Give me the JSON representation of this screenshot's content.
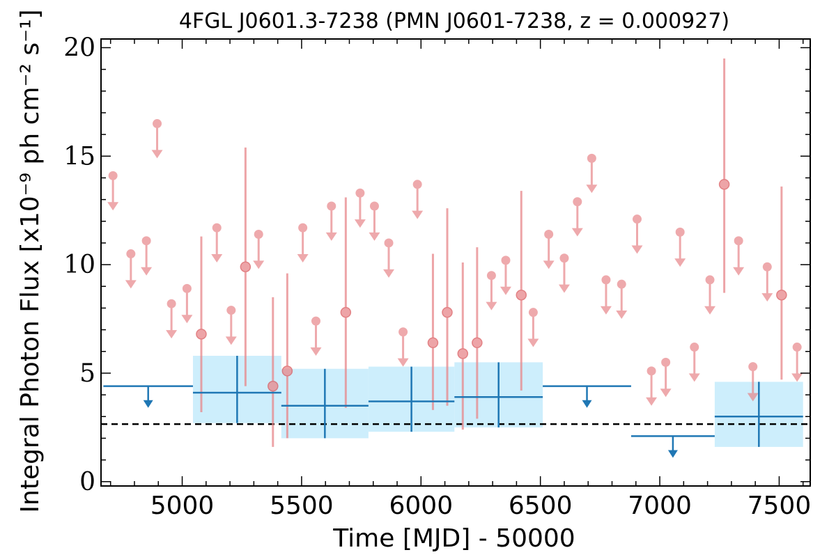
{
  "chart_data": {
    "type": "scatter",
    "title": "4FGL J0601.3-7238 (PMN J0601-7238, z = 0.000927)",
    "xlabel": "Time [MJD] - 50000",
    "ylabel": "Integral Photon Flux [x10⁻⁹ ph cm⁻² s⁻¹]",
    "xlim": [
      4660,
      7630
    ],
    "ylim": [
      -0.2,
      20.4
    ],
    "x_ticks": [
      "5000",
      "5500",
      "6000",
      "6500",
      "7000",
      "7500"
    ],
    "x_tick_values": [
      5000,
      5500,
      6000,
      6500,
      7000,
      7500
    ],
    "y_ticks": [
      "0",
      "5",
      "10",
      "15",
      "20"
    ],
    "y_tick_values": [
      0,
      5,
      10,
      15,
      20
    ],
    "average_flux": 2.65,
    "colors": {
      "short_bins": "#e8868a",
      "long_bins": "#1f77b4",
      "band": "#cdeefc",
      "average_line": "#000000"
    },
    "short_bins_upper_limits": [
      {
        "x": 4710,
        "y": 14.1
      },
      {
        "x": 4785,
        "y": 10.5
      },
      {
        "x": 4850,
        "y": 11.1
      },
      {
        "x": 4895,
        "y": 16.5
      },
      {
        "x": 4955,
        "y": 8.2
      },
      {
        "x": 5020,
        "y": 8.9
      },
      {
        "x": 5145,
        "y": 11.7
      },
      {
        "x": 5205,
        "y": 7.9
      },
      {
        "x": 5320,
        "y": 11.4
      },
      {
        "x": 5505,
        "y": 11.7
      },
      {
        "x": 5560,
        "y": 7.4
      },
      {
        "x": 5625,
        "y": 12.7
      },
      {
        "x": 5745,
        "y": 13.3
      },
      {
        "x": 5805,
        "y": 12.7
      },
      {
        "x": 5865,
        "y": 11.0
      },
      {
        "x": 5925,
        "y": 6.9
      },
      {
        "x": 5985,
        "y": 13.7
      },
      {
        "x": 6295,
        "y": 9.5
      },
      {
        "x": 6355,
        "y": 10.2
      },
      {
        "x": 6470,
        "y": 7.8
      },
      {
        "x": 6535,
        "y": 11.4
      },
      {
        "x": 6600,
        "y": 10.3
      },
      {
        "x": 6655,
        "y": 12.9
      },
      {
        "x": 6715,
        "y": 14.9
      },
      {
        "x": 6775,
        "y": 9.3
      },
      {
        "x": 6840,
        "y": 9.1
      },
      {
        "x": 6905,
        "y": 12.1
      },
      {
        "x": 6965,
        "y": 5.1
      },
      {
        "x": 7025,
        "y": 5.5
      },
      {
        "x": 7085,
        "y": 11.5
      },
      {
        "x": 7145,
        "y": 6.2
      },
      {
        "x": 7210,
        "y": 9.3
      },
      {
        "x": 7330,
        "y": 11.1
      },
      {
        "x": 7390,
        "y": 5.3
      },
      {
        "x": 7450,
        "y": 9.9
      },
      {
        "x": 7575,
        "y": 6.2
      }
    ],
    "short_bins_detections": [
      {
        "x": 5080,
        "y": 6.8,
        "lo": 3.2,
        "hi": 11.3
      },
      {
        "x": 5265,
        "y": 9.9,
        "lo": 4.4,
        "hi": 15.4
      },
      {
        "x": 5380,
        "y": 4.4,
        "lo": 1.6,
        "hi": 8.5
      },
      {
        "x": 5440,
        "y": 5.1,
        "lo": 2.0,
        "hi": 9.6
      },
      {
        "x": 5685,
        "y": 7.8,
        "lo": 3.4,
        "hi": 13.1
      },
      {
        "x": 6050,
        "y": 6.4,
        "lo": 3.3,
        "hi": 10.5
      },
      {
        "x": 6110,
        "y": 7.8,
        "lo": 3.5,
        "hi": 12.6
      },
      {
        "x": 6175,
        "y": 5.9,
        "lo": 2.4,
        "hi": 10.1
      },
      {
        "x": 6235,
        "y": 6.4,
        "lo": 2.9,
        "hi": 10.8
      },
      {
        "x": 6420,
        "y": 8.6,
        "lo": 4.2,
        "hi": 13.4
      },
      {
        "x": 7270,
        "y": 13.7,
        "lo": 8.7,
        "hi": 19.5
      },
      {
        "x": 7510,
        "y": 8.6,
        "lo": 4.7,
        "hi": 13.6
      }
    ],
    "long_bins_upper_limits": [
      {
        "x0": 4670,
        "x1": 5045,
        "y": 4.4
      },
      {
        "x0": 6510,
        "x1": 6880,
        "y": 4.4
      },
      {
        "x0": 6880,
        "x1": 7230,
        "y": 2.1
      }
    ],
    "long_bins_detections": [
      {
        "x0": 5045,
        "x1": 5415,
        "y": 4.1,
        "lo": 2.7,
        "hi": 5.8
      },
      {
        "x0": 5415,
        "x1": 5780,
        "y": 3.5,
        "lo": 2.0,
        "hi": 5.2
      },
      {
        "x0": 5780,
        "x1": 6140,
        "y": 3.7,
        "lo": 2.3,
        "hi": 5.3
      },
      {
        "x0": 6140,
        "x1": 6510,
        "y": 3.9,
        "lo": 2.5,
        "hi": 5.5
      },
      {
        "x0": 7230,
        "x1": 7600,
        "y": 3.0,
        "lo": 1.6,
        "hi": 4.6
      }
    ]
  }
}
